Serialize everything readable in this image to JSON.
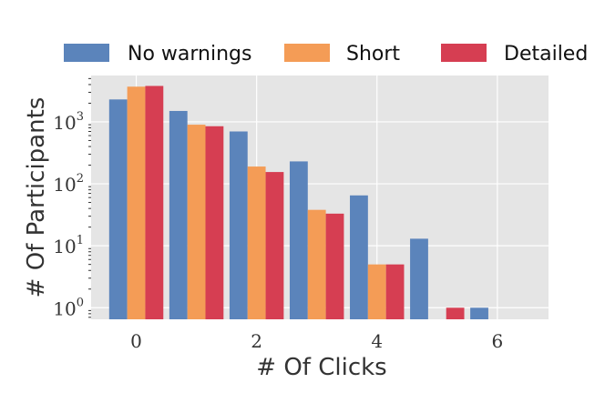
{
  "chart_data": {
    "type": "bar",
    "x": [
      0,
      1,
      2,
      3,
      4,
      5,
      6
    ],
    "xticks": [
      0,
      2,
      4,
      6
    ],
    "xlabel": "# Of Clicks",
    "ylabel": "# Of Participants",
    "yscale": "log",
    "ylim": [
      0.65,
      5600
    ],
    "yticks": [
      {
        "value": 1,
        "base": "10",
        "exp": "0"
      },
      {
        "value": 10,
        "base": "10",
        "exp": "1"
      },
      {
        "value": 100,
        "base": "10",
        "exp": "2"
      },
      {
        "value": 1000,
        "base": "10",
        "exp": "3"
      }
    ],
    "grid": true,
    "legend_position": "top",
    "series": [
      {
        "name": "No warnings",
        "color": "#5b84bb",
        "values": [
          2300,
          1500,
          700,
          230,
          65,
          13,
          1
        ]
      },
      {
        "name": "Short",
        "color": "#f49c56",
        "values": [
          3700,
          900,
          190,
          38,
          5,
          null,
          null
        ]
      },
      {
        "name": "Detailed",
        "color": "#d63e52",
        "values": [
          3800,
          850,
          155,
          33,
          5,
          1,
          null
        ]
      }
    ]
  }
}
